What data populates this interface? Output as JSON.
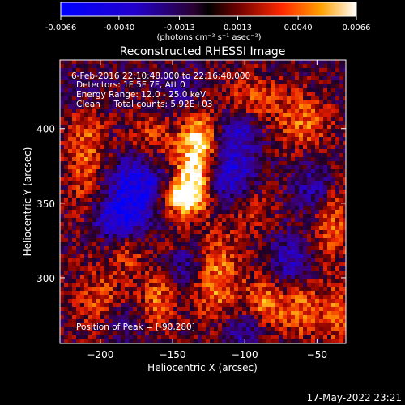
{
  "chart_data": {
    "type": "heatmap",
    "title": "Reconstructed RHESSI Image",
    "xlabel": "Heliocentric X (arcsec)",
    "ylabel": "Heliocentric Y (arcsec)",
    "xlim": [
      -228,
      -30
    ],
    "ylim": [
      256,
      446
    ],
    "x_ticks": [
      -200,
      -150,
      -100,
      -50
    ],
    "y_ticks": [
      300,
      350,
      400
    ],
    "colorbar": {
      "ticks": [
        "-0.0066",
        "-0.0040",
        "-0.0013",
        "0.0013",
        "0.0040",
        "0.0066"
      ],
      "unit_label": "(photons cm⁻² s⁻¹ asec⁻²)",
      "range": [
        -0.0066,
        0.0066
      ]
    },
    "annotations": [
      "6-Feb-2016 22:10:48.000 to 22:16:48.000",
      "Detectors: 1F 5F 7F, Att 0",
      "Energy Range: 12.0 - 25.0 keV",
      "Clean     Total counts: 5.92E+03"
    ],
    "peak_label": "Position of Peak = [-90,280]",
    "peak": [
      -90,
      280
    ],
    "blobs": [
      {
        "x": -136,
        "y": 368,
        "sx": 9,
        "sy": 16,
        "a": 1.0
      },
      {
        "x": -130,
        "y": 395,
        "sx": 9,
        "sy": 14,
        "a": 0.75
      },
      {
        "x": -145,
        "y": 353,
        "sx": 10,
        "sy": 8,
        "a": 0.7
      },
      {
        "x": -210,
        "y": 385,
        "sx": 10,
        "sy": 30,
        "a": 0.55
      },
      {
        "x": -165,
        "y": 395,
        "sx": 12,
        "sy": 12,
        "a": 0.45
      },
      {
        "x": -95,
        "y": 420,
        "sx": 14,
        "sy": 12,
        "a": 0.45
      },
      {
        "x": -60,
        "y": 405,
        "sx": 14,
        "sy": 14,
        "a": 0.55
      },
      {
        "x": -40,
        "y": 340,
        "sx": 10,
        "sy": 22,
        "a": 0.55
      },
      {
        "x": -95,
        "y": 345,
        "sx": 10,
        "sy": 12,
        "a": 0.35
      },
      {
        "x": -120,
        "y": 300,
        "sx": 12,
        "sy": 22,
        "a": 0.65
      },
      {
        "x": -85,
        "y": 283,
        "sx": 10,
        "sy": 16,
        "a": 0.6
      },
      {
        "x": -160,
        "y": 285,
        "sx": 8,
        "sy": 14,
        "a": 0.55
      },
      {
        "x": -200,
        "y": 285,
        "sx": 14,
        "sy": 16,
        "a": 0.45
      },
      {
        "x": -60,
        "y": 278,
        "sx": 10,
        "sy": 14,
        "a": 0.55
      },
      {
        "x": -35,
        "y": 275,
        "sx": 8,
        "sy": 14,
        "a": 0.55
      },
      {
        "x": -180,
        "y": 315,
        "sx": 8,
        "sy": 10,
        "a": 0.35
      },
      {
        "x": -150,
        "y": 325,
        "sx": 6,
        "sy": 8,
        "a": 0.25
      },
      {
        "x": -175,
        "y": 360,
        "sx": 14,
        "sy": 16,
        "a": -0.8
      },
      {
        "x": -110,
        "y": 370,
        "sx": 12,
        "sy": 14,
        "a": -0.7
      },
      {
        "x": -105,
        "y": 400,
        "sx": 12,
        "sy": 10,
        "a": -0.5
      },
      {
        "x": -50,
        "y": 360,
        "sx": 10,
        "sy": 14,
        "a": -0.55
      },
      {
        "x": -190,
        "y": 340,
        "sx": 12,
        "sy": 10,
        "a": -0.6
      },
      {
        "x": -140,
        "y": 310,
        "sx": 10,
        "sy": 10,
        "a": -0.45
      },
      {
        "x": -185,
        "y": 270,
        "sx": 10,
        "sy": 8,
        "a": -0.4
      },
      {
        "x": -70,
        "y": 310,
        "sx": 12,
        "sy": 12,
        "a": -0.5
      },
      {
        "x": -100,
        "y": 265,
        "sx": 12,
        "sy": 8,
        "a": -0.5
      },
      {
        "x": -210,
        "y": 425,
        "sx": 12,
        "sy": 12,
        "a": -0.3
      },
      {
        "x": -145,
        "y": 425,
        "sx": 10,
        "sy": 10,
        "a": -0.3
      }
    ]
  },
  "timestamp": "17-May-2022 23:21"
}
